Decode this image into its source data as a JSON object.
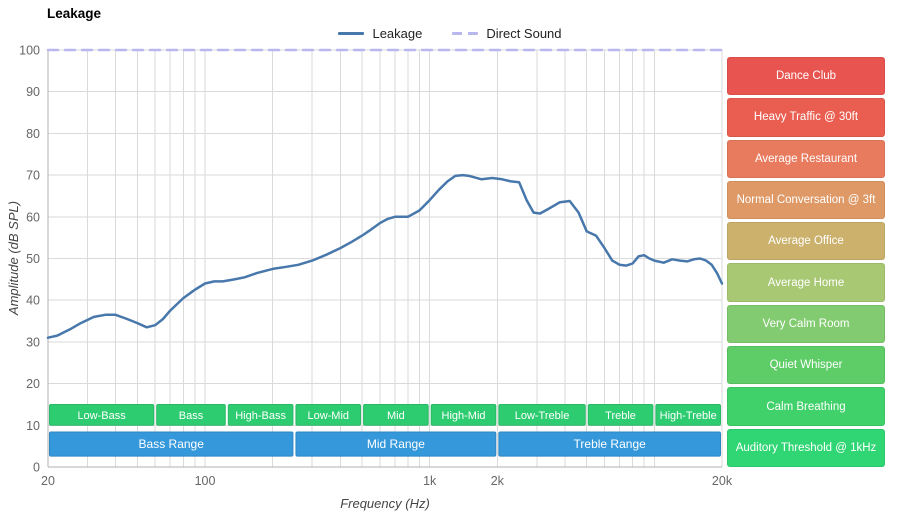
{
  "title": "Leakage",
  "legend": [
    {
      "label": "Leakage",
      "color": "#4878ab",
      "dashed": false
    },
    {
      "label": "Direct Sound",
      "color": "#b8b8ef",
      "dashed": true
    }
  ],
  "chart_data": {
    "type": "line",
    "title": "Leakage",
    "xlabel": "Frequency (Hz)",
    "ylabel": "Amplitude (dB SPL)",
    "x_scale": "log",
    "xlim": [
      20,
      20000
    ],
    "ylim": [
      0,
      100
    ],
    "grid": true,
    "legend_position": "top-center",
    "x_ticks": [
      {
        "f": 20,
        "label": "20"
      },
      {
        "f": 100,
        "label": "100"
      },
      {
        "f": 1000,
        "label": "1k"
      },
      {
        "f": 2000,
        "label": "2k"
      },
      {
        "f": 20000,
        "label": "20k"
      }
    ],
    "y_ticks": [
      0,
      10,
      20,
      30,
      40,
      50,
      60,
      70,
      80,
      90,
      100
    ],
    "series": [
      {
        "name": "Leakage",
        "color": "#4878ab",
        "style": "solid",
        "points": [
          [
            20,
            31
          ],
          [
            22,
            31.5
          ],
          [
            25,
            33
          ],
          [
            28,
            34.5
          ],
          [
            32,
            36
          ],
          [
            36,
            36.5
          ],
          [
            40,
            36.5
          ],
          [
            45,
            35.5
          ],
          [
            50,
            34.5
          ],
          [
            55,
            33.5
          ],
          [
            60,
            34
          ],
          [
            65,
            35.5
          ],
          [
            70,
            37.5
          ],
          [
            80,
            40.5
          ],
          [
            90,
            42.5
          ],
          [
            100,
            44
          ],
          [
            110,
            44.5
          ],
          [
            120,
            44.5
          ],
          [
            135,
            45
          ],
          [
            150,
            45.5
          ],
          [
            170,
            46.5
          ],
          [
            200,
            47.5
          ],
          [
            230,
            48
          ],
          [
            260,
            48.5
          ],
          [
            300,
            49.5
          ],
          [
            350,
            51
          ],
          [
            400,
            52.5
          ],
          [
            450,
            54
          ],
          [
            500,
            55.5
          ],
          [
            550,
            57
          ],
          [
            600,
            58.5
          ],
          [
            650,
            59.5
          ],
          [
            700,
            60
          ],
          [
            800,
            60
          ],
          [
            900,
            61.5
          ],
          [
            1000,
            64
          ],
          [
            1100,
            66.5
          ],
          [
            1200,
            68.5
          ],
          [
            1300,
            69.8
          ],
          [
            1400,
            70
          ],
          [
            1500,
            69.8
          ],
          [
            1700,
            69
          ],
          [
            1900,
            69.3
          ],
          [
            2100,
            69
          ],
          [
            2300,
            68.5
          ],
          [
            2500,
            68.3
          ],
          [
            2700,
            64
          ],
          [
            2900,
            61
          ],
          [
            3100,
            60.8
          ],
          [
            3400,
            62
          ],
          [
            3800,
            63.5
          ],
          [
            4200,
            63.8
          ],
          [
            4600,
            61
          ],
          [
            5000,
            56.5
          ],
          [
            5500,
            55.5
          ],
          [
            6000,
            52.5
          ],
          [
            6500,
            49.5
          ],
          [
            7000,
            48.5
          ],
          [
            7500,
            48.3
          ],
          [
            8000,
            48.8
          ],
          [
            8500,
            50.5
          ],
          [
            9000,
            50.8
          ],
          [
            9500,
            50
          ],
          [
            10000,
            49.5
          ],
          [
            11000,
            49
          ],
          [
            12000,
            49.8
          ],
          [
            13000,
            49.5
          ],
          [
            14000,
            49.3
          ],
          [
            15000,
            49.8
          ],
          [
            16000,
            50
          ],
          [
            17000,
            49.5
          ],
          [
            18000,
            48.5
          ],
          [
            19000,
            46.5
          ],
          [
            20000,
            44
          ]
        ]
      },
      {
        "name": "Direct Sound",
        "color": "#b8b8ef",
        "style": "dashed",
        "points": [
          [
            20,
            100
          ],
          [
            20000,
            100
          ]
        ]
      }
    ]
  },
  "bands": {
    "sub_color": "#2ecc71",
    "sub_border": "#29b865",
    "main_color": "#3598db",
    "main_border": "#2e86c1",
    "sub_db_range": [
      10,
      15
    ],
    "main_db_range": [
      2.6,
      8.4
    ],
    "sub": [
      {
        "label": "Low-Bass",
        "from": 20,
        "to": 60
      },
      {
        "label": "Bass",
        "from": 60,
        "to": 125
      },
      {
        "label": "High-Bass",
        "from": 125,
        "to": 250
      },
      {
        "label": "Low-Mid",
        "from": 250,
        "to": 500
      },
      {
        "label": "Mid",
        "from": 500,
        "to": 1000
      },
      {
        "label": "High-Mid",
        "from": 1000,
        "to": 2000
      },
      {
        "label": "Low-Treble",
        "from": 2000,
        "to": 5000
      },
      {
        "label": "Treble",
        "from": 5000,
        "to": 10000
      },
      {
        "label": "High-Treble",
        "from": 10000,
        "to": 20000
      }
    ],
    "main": [
      {
        "label": "Bass Range",
        "from": 20,
        "to": 250
      },
      {
        "label": "Mid Range",
        "from": 250,
        "to": 2000
      },
      {
        "label": "Treble Range",
        "from": 2000,
        "to": 20000
      }
    ]
  },
  "ambient_levels": [
    {
      "label": "Dance Club",
      "color": "#e85450"
    },
    {
      "label": "Heavy Traffic @ 30ft",
      "color": "#e95e50"
    },
    {
      "label": "Average Restaurant",
      "color": "#e87a5e"
    },
    {
      "label": "Normal Conversation @ 3ft",
      "color": "#de9966"
    },
    {
      "label": "Average Office",
      "color": "#cbb16c"
    },
    {
      "label": "Average Home",
      "color": "#a9c873"
    },
    {
      "label": "Very Calm Room",
      "color": "#82cb70"
    },
    {
      "label": "Quiet Whisper",
      "color": "#5ecd67"
    },
    {
      "label": "Calm Breathing",
      "color": "#40d16a"
    },
    {
      "label": "Auditory Threshold @ 1kHz",
      "color": "#2fd673"
    }
  ]
}
